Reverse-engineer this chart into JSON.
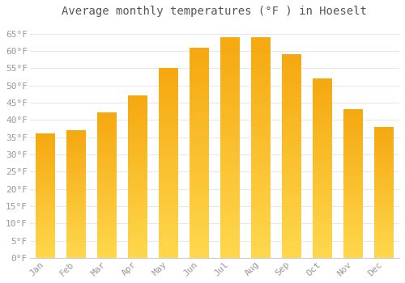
{
  "title": "Average monthly temperatures (°F ) in Hoeselt",
  "months": [
    "Jan",
    "Feb",
    "Mar",
    "Apr",
    "May",
    "Jun",
    "Jul",
    "Aug",
    "Sep",
    "Oct",
    "Nov",
    "Dec"
  ],
  "values": [
    36,
    37,
    42,
    47,
    55,
    61,
    64,
    64,
    59,
    52,
    43,
    38
  ],
  "bar_color_top": "#F5A800",
  "bar_color_bottom": "#FFD84D",
  "ylim": [
    0,
    68
  ],
  "yticks": [
    0,
    5,
    10,
    15,
    20,
    25,
    30,
    35,
    40,
    45,
    50,
    55,
    60,
    65
  ],
  "ytick_labels": [
    "0°F",
    "5°F",
    "10°F",
    "15°F",
    "20°F",
    "25°F",
    "30°F",
    "35°F",
    "40°F",
    "45°F",
    "50°F",
    "55°F",
    "60°F",
    "65°F"
  ],
  "background_color": "#ffffff",
  "grid_color": "#e8e8e8",
  "title_fontsize": 10,
  "tick_fontsize": 8,
  "font_family": "monospace",
  "label_color": "#999999"
}
